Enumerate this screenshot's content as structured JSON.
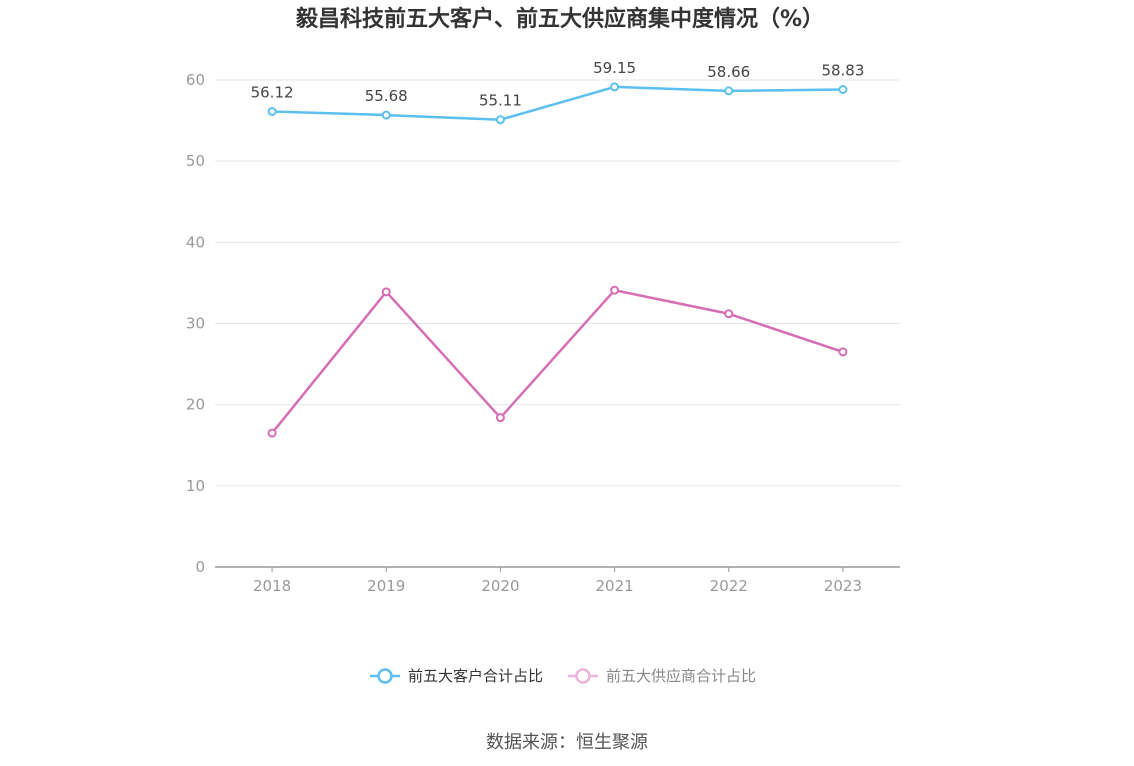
{
  "chart_data": {
    "type": "line",
    "title": "毅昌科技前五大客户、前五大供应商集中度情况（%）",
    "categories": [
      "2018",
      "2019",
      "2020",
      "2021",
      "2022",
      "2023"
    ],
    "ylim": [
      0,
      60
    ],
    "yticks": [
      0,
      10,
      20,
      30,
      40,
      50,
      60
    ],
    "grid": true,
    "legend_position": "bottom",
    "series": [
      {
        "name": "前五大客户合计占比",
        "color": "#5bbfef",
        "values": [
          56.12,
          55.68,
          55.11,
          59.15,
          58.66,
          58.83
        ],
        "labels": [
          "56.12",
          "55.68",
          "55.11",
          "59.15",
          "58.66",
          "58.83"
        ],
        "show_labels": true
      },
      {
        "name": "前五大供应商合计占比",
        "color": "#d56eb4",
        "legend_color": "#eeb5dc",
        "values": [
          16.5,
          33.9,
          18.4,
          34.1,
          31.2,
          26.5
        ],
        "show_labels": false
      }
    ],
    "source": "数据来源：恒生聚源"
  }
}
